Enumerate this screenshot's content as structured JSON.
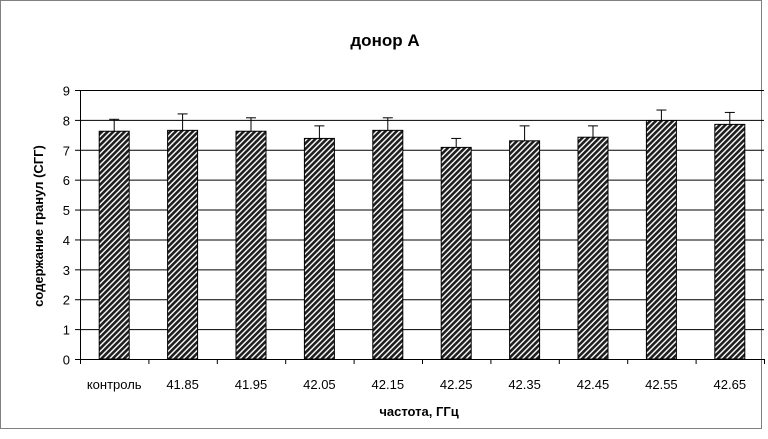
{
  "chart_data": {
    "type": "bar",
    "title": "донор А",
    "xlabel": "частота, ГГц",
    "ylabel": "содержание гранул (СГГ)",
    "ylim": [
      0,
      9
    ],
    "yticks": [
      0,
      1,
      2,
      3,
      4,
      5,
      6,
      7,
      8,
      9
    ],
    "grid": true,
    "categories": [
      "контроль",
      "41.85",
      "41.95",
      "42.05",
      "42.15",
      "42.25",
      "42.35",
      "42.45",
      "42.55",
      "42.65"
    ],
    "series": [
      {
        "values": [
          7.62,
          7.65,
          7.62,
          7.38,
          7.65,
          7.08,
          7.3,
          7.42,
          7.98,
          7.85
        ],
        "error_plus": [
          0.4,
          0.55,
          0.45,
          0.42,
          0.42,
          0.3,
          0.5,
          0.38,
          0.35,
          0.4
        ]
      }
    ],
    "bar_pattern": "diagonal-hatch",
    "legend": "none"
  }
}
